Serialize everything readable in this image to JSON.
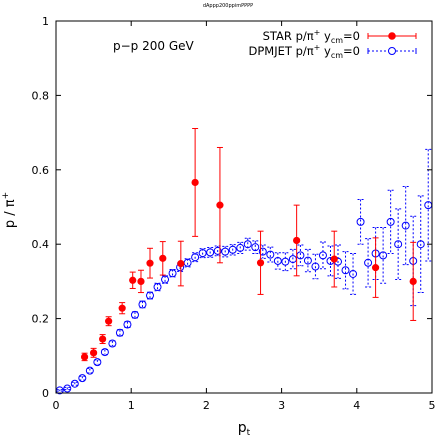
{
  "chart_data": {
    "type": "scatter",
    "top_label": "dAppp200ppimPPPP",
    "annotation": "p−p 200 GeV",
    "xlabel": {
      "main": "p",
      "sub": "t"
    },
    "ylabel": {
      "main": "p / π",
      "sup": "+"
    },
    "xlim": [
      0,
      5
    ],
    "ylim": [
      0,
      1
    ],
    "xticks": [
      {
        "value": 0,
        "label": "0"
      },
      {
        "value": 1,
        "label": "1"
      },
      {
        "value": 2,
        "label": "2"
      },
      {
        "value": 3,
        "label": "3"
      },
      {
        "value": 4,
        "label": "4"
      },
      {
        "value": 5,
        "label": "5"
      }
    ],
    "yticks": [
      {
        "value": 0,
        "label": "0"
      },
      {
        "value": 0.2,
        "label": "0.2"
      },
      {
        "value": 0.4,
        "label": "0.4"
      },
      {
        "value": 0.6,
        "label": "0.6"
      },
      {
        "value": 0.8,
        "label": "0.8"
      },
      {
        "value": 1,
        "label": "1"
      }
    ],
    "grid": false,
    "legend_position": "top-right",
    "series": [
      {
        "name": "STAR p/π⁺ yᶜᵐ=0",
        "legend": {
          "a": "STAR p/π",
          "sup": "+",
          "b": " y",
          "sub": "cm",
          "c": "=0"
        },
        "marker": "filled-circle",
        "color": "#ff0000",
        "x": [
          0.38,
          0.5,
          0.62,
          0.7,
          0.88,
          1.02,
          1.13,
          1.25,
          1.42,
          1.66,
          1.85,
          2.18,
          2.72,
          3.2,
          3.7,
          4.25,
          4.75
        ],
        "y": [
          0.097,
          0.108,
          0.145,
          0.193,
          0.228,
          0.303,
          0.3,
          0.349,
          0.362,
          0.348,
          0.566,
          0.505,
          0.35,
          0.41,
          0.36,
          0.337,
          0.3
        ],
        "err": [
          0.01,
          0.012,
          0.012,
          0.012,
          0.015,
          0.022,
          0.03,
          0.04,
          0.045,
          0.06,
          0.145,
          0.155,
          0.085,
          0.095,
          0.075,
          0.08,
          0.105
        ]
      },
      {
        "name": "DPMJET p/π⁺ yᶜᵐ=0",
        "legend": {
          "a": "DPMJET p/π",
          "sup": "+",
          "b": " y",
          "sub": "cm",
          "c": "=0"
        },
        "marker": "open-circle",
        "color": "#0000ff",
        "x": [
          0.05,
          0.15,
          0.25,
          0.35,
          0.45,
          0.55,
          0.65,
          0.75,
          0.85,
          0.95,
          1.05,
          1.15,
          1.25,
          1.35,
          1.45,
          1.55,
          1.65,
          1.75,
          1.85,
          1.95,
          2.05,
          2.15,
          2.25,
          2.35,
          2.45,
          2.55,
          2.65,
          2.75,
          2.85,
          2.95,
          3.05,
          3.15,
          3.25,
          3.35,
          3.45,
          3.55,
          3.65,
          3.75,
          3.85,
          3.95,
          4.05,
          4.15,
          4.25,
          4.35,
          4.45,
          4.55,
          4.65,
          4.75,
          4.85,
          4.95
        ],
        "y": [
          0.007,
          0.012,
          0.025,
          0.04,
          0.06,
          0.083,
          0.11,
          0.133,
          0.162,
          0.184,
          0.21,
          0.238,
          0.262,
          0.285,
          0.305,
          0.322,
          0.338,
          0.35,
          0.365,
          0.376,
          0.378,
          0.382,
          0.38,
          0.385,
          0.39,
          0.4,
          0.392,
          0.38,
          0.372,
          0.355,
          0.353,
          0.36,
          0.37,
          0.356,
          0.34,
          0.37,
          0.355,
          0.353,
          0.33,
          0.32,
          0.46,
          0.35,
          0.375,
          0.37,
          0.46,
          0.4,
          0.45,
          0.355,
          0.4,
          0.505
        ],
        "err": [
          0.002,
          0.003,
          0.004,
          0.005,
          0.006,
          0.006,
          0.007,
          0.007,
          0.008,
          0.008,
          0.008,
          0.009,
          0.009,
          0.01,
          0.01,
          0.01,
          0.011,
          0.011,
          0.012,
          0.012,
          0.013,
          0.013,
          0.014,
          0.014,
          0.015,
          0.016,
          0.017,
          0.018,
          0.02,
          0.022,
          0.024,
          0.026,
          0.028,
          0.03,
          0.033,
          0.036,
          0.04,
          0.045,
          0.05,
          0.055,
          0.06,
          0.065,
          0.07,
          0.075,
          0.085,
          0.095,
          0.105,
          0.12,
          0.13,
          0.15
        ]
      }
    ]
  }
}
